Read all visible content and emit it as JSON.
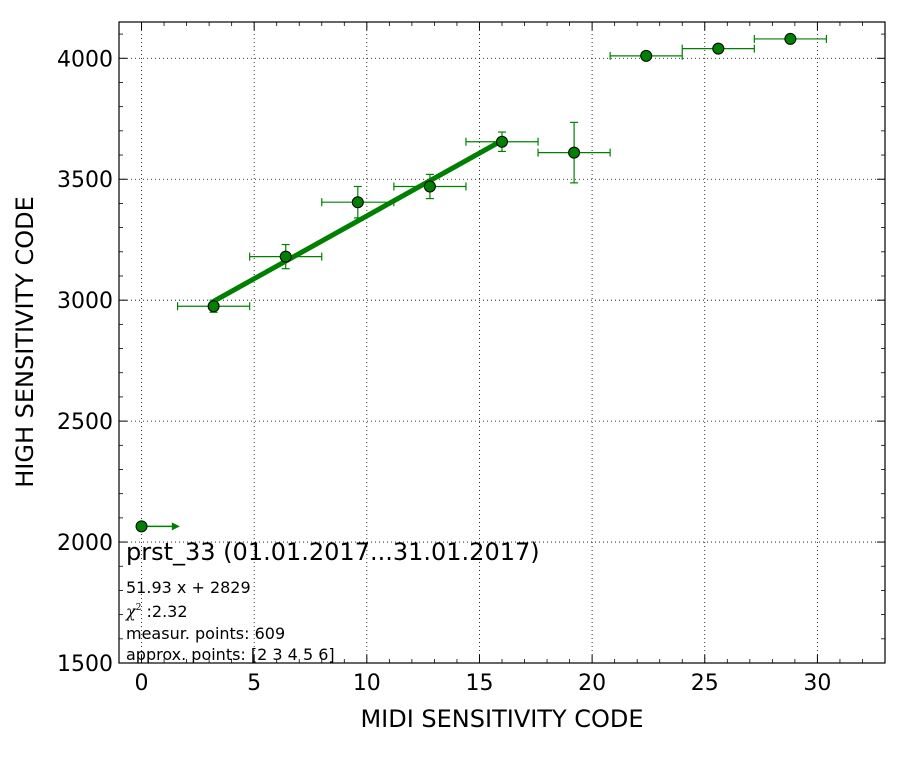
{
  "chart_data": {
    "type": "scatter",
    "title": "prst_33 (01.01.2017...31.01.2017)",
    "xlabel": "MIDI SENSITIVITY CODE",
    "ylabel": "HIGH SENSITIVITY CODE",
    "xlim": [
      -1,
      33
    ],
    "ylim": [
      1500,
      4150
    ],
    "xticks": [
      0,
      5,
      10,
      15,
      20,
      25,
      30
    ],
    "yticks": [
      1500,
      2000,
      2500,
      3000,
      3500,
      4000
    ],
    "grid": true,
    "colors": {
      "series": "#008000",
      "marker_edge": "#000000",
      "fit": "#008000"
    },
    "series": [
      {
        "points": [
          {
            "x": 3.2,
            "y": 2975,
            "xerr": 1.6,
            "yerr": 25
          },
          {
            "x": 6.4,
            "y": 3180,
            "xerr": 1.6,
            "yerr": 50
          },
          {
            "x": 9.6,
            "y": 3405,
            "xerr": 1.6,
            "yerr": 65
          },
          {
            "x": 12.8,
            "y": 3470,
            "xerr": 1.6,
            "yerr": 50
          },
          {
            "x": 16.0,
            "y": 3655,
            "xerr": 1.6,
            "yerr": 40
          },
          {
            "x": 19.2,
            "y": 3610,
            "xerr": 1.6,
            "yerr": 125
          },
          {
            "x": 22.4,
            "y": 4010,
            "xerr": 1.6,
            "yerr": 12
          },
          {
            "x": 25.6,
            "y": 4040,
            "xerr": 1.6,
            "yerr": 0
          },
          {
            "x": 28.8,
            "y": 4080,
            "xerr": 1.6,
            "yerr": 0
          }
        ]
      }
    ],
    "outlier": {
      "x": 0,
      "y": 2065,
      "arrow_to_x": 1.7
    },
    "fit": {
      "slope": 51.93,
      "intercept": 2829,
      "x_range": [
        3.2,
        16.0
      ]
    },
    "annotations": {
      "equation": "51.93 x + 2829",
      "chi_symbol": "χ",
      "chi_exp": "2",
      "chi_value": " :2.32",
      "measur_points": "measur. points: 609",
      "approx_points": "approx. points: [2 3 4 5 6]"
    }
  }
}
